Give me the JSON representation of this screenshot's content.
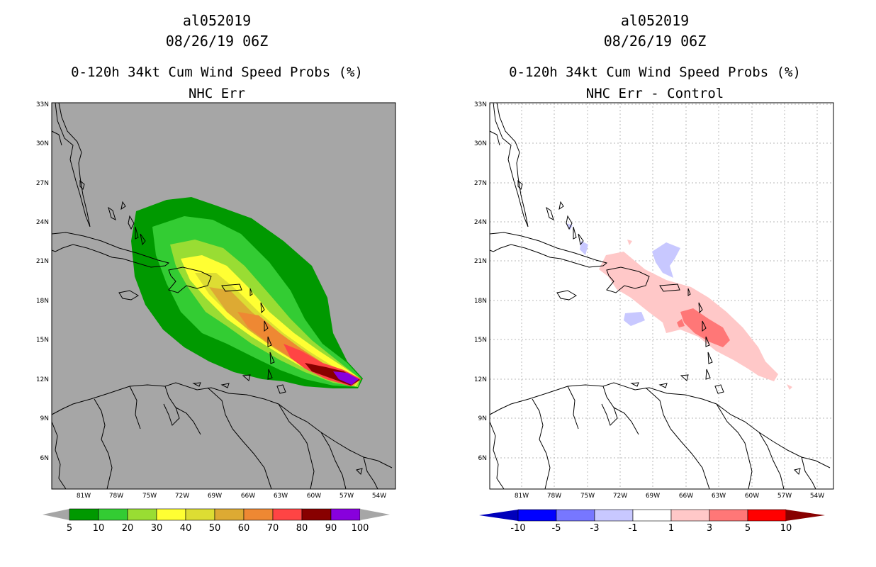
{
  "left_panel": {
    "storm_id": "al052019",
    "datetime": "08/26/19 06Z",
    "title": "0-120h 34kt Cum Wind Speed Probs (%)",
    "subtitle": "NHC Err",
    "background_color": "#a6a6a6",
    "colorbar": {
      "labels": [
        "5",
        "10",
        "20",
        "30",
        "40",
        "50",
        "60",
        "70",
        "80",
        "90",
        "100"
      ],
      "colors": [
        "#009900",
        "#33cc33",
        "#99dd33",
        "#ffff33",
        "#dddd33",
        "#ddaa33",
        "#ee8833",
        "#ff4444",
        "#880000",
        "#8800dd"
      ]
    }
  },
  "right_panel": {
    "storm_id": "al052019",
    "datetime": "08/26/19 06Z",
    "title": "0-120h 34kt Cum Wind Speed Probs (%)",
    "subtitle": "NHC Err - Control",
    "background_color": "#ffffff",
    "colorbar": {
      "labels": [
        "-10",
        "-5",
        "-3",
        "-1",
        "1",
        "3",
        "5",
        "10"
      ],
      "colors": [
        "#0000bb",
        "#0000ff",
        "#7777ff",
        "#c8c8ff",
        "#ffffff",
        "#ffc8c8",
        "#ff7777",
        "#ff0000",
        "#880000"
      ]
    }
  },
  "lat_labels": [
    "33N",
    "30N",
    "27N",
    "24N",
    "21N",
    "18N",
    "15N",
    "12N",
    "9N",
    "6N"
  ],
  "lon_labels": [
    "81W",
    "78W",
    "75W",
    "72W",
    "69W",
    "66W",
    "63W",
    "60W",
    "57W",
    "54W"
  ]
}
